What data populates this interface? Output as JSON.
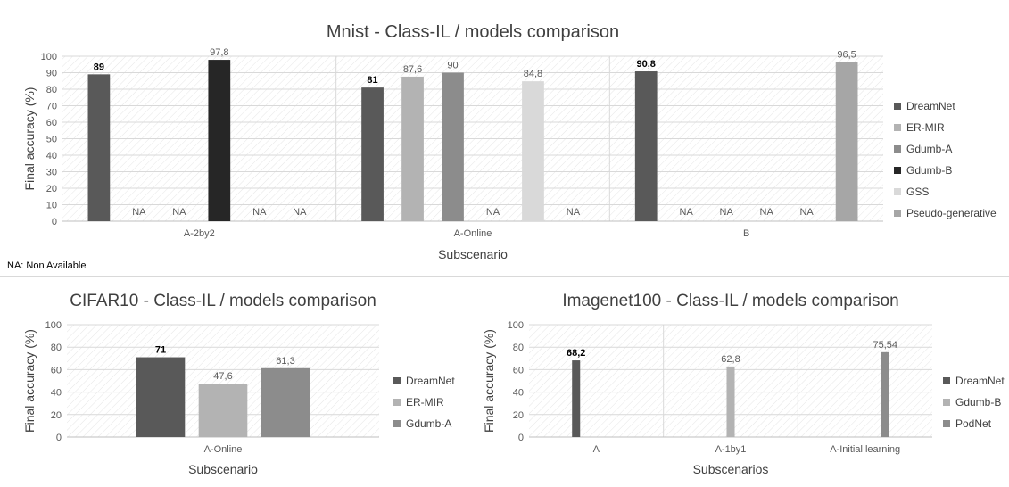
{
  "footnote": "NA: Non Available",
  "chart_data": [
    {
      "type": "bar",
      "title": "Mnist - Class-IL / models comparison",
      "xlabel": "Subscenario",
      "ylabel": "Final accuracy (%)",
      "ylim": [
        0,
        100
      ],
      "yticks": [
        0,
        10,
        20,
        30,
        40,
        50,
        60,
        70,
        80,
        90,
        100
      ],
      "grid": true,
      "legend_position": "right",
      "categories": [
        "A-2by2",
        "A-Online",
        "B"
      ],
      "series": [
        {
          "name": "DreamNet",
          "color": "#595959",
          "values": [
            89,
            81,
            90.8
          ],
          "labels": [
            "89",
            "81",
            "90,8"
          ],
          "bold": true
        },
        {
          "name": "ER-MIR",
          "color": "#b3b3b3",
          "values": [
            null,
            87.6,
            null
          ],
          "labels": [
            "NA",
            "87,6",
            "NA"
          ]
        },
        {
          "name": "Gdumb-A",
          "color": "#8c8c8c",
          "values": [
            null,
            90,
            null
          ],
          "labels": [
            "NA",
            "90",
            "NA"
          ]
        },
        {
          "name": "Gdumb-B",
          "color": "#262626",
          "values": [
            97.8,
            null,
            null
          ],
          "labels": [
            "97,8",
            "NA",
            "NA"
          ]
        },
        {
          "name": "GSS",
          "color": "#d9d9d9",
          "values": [
            null,
            84.8,
            null
          ],
          "labels": [
            "NA",
            "84,8",
            "NA"
          ]
        },
        {
          "name": "Pseudo-generative",
          "color": "#a6a6a6",
          "values": [
            null,
            null,
            96.5
          ],
          "labels": [
            "NA",
            "NA",
            "96,5"
          ]
        }
      ]
    },
    {
      "type": "bar",
      "title": "CIFAR10 - Class-IL / models comparison",
      "xlabel": "Subscenario",
      "ylabel": "Final accuracy (%)",
      "ylim": [
        0,
        100
      ],
      "yticks": [
        0,
        20,
        40,
        60,
        80,
        100
      ],
      "grid": true,
      "legend_position": "right",
      "categories": [
        "A-Online"
      ],
      "series": [
        {
          "name": "DreamNet",
          "color": "#595959",
          "values": [
            71
          ],
          "labels": [
            "71"
          ],
          "bold": true
        },
        {
          "name": "ER-MIR",
          "color": "#b3b3b3",
          "values": [
            47.6
          ],
          "labels": [
            "47,6"
          ]
        },
        {
          "name": "Gdumb-A",
          "color": "#8c8c8c",
          "values": [
            61.3
          ],
          "labels": [
            "61,3"
          ]
        }
      ]
    },
    {
      "type": "bar",
      "title": "Imagenet100 - Class-IL / models comparison",
      "xlabel": "Subscenarios",
      "ylabel": "Final accuracy (%)",
      "ylim": [
        0,
        100
      ],
      "yticks": [
        0,
        20,
        40,
        60,
        80,
        100
      ],
      "grid": true,
      "legend_position": "right",
      "categories": [
        "A",
        "A-1by1",
        "A-Initial learning"
      ],
      "series": [
        {
          "name": "DreamNet",
          "color": "#595959",
          "values": [
            68.2,
            null,
            null
          ],
          "labels": [
            "68,2",
            "",
            ""
          ],
          "bold": true
        },
        {
          "name": "Gdumb-B",
          "color": "#b3b3b3",
          "values": [
            null,
            62.8,
            null
          ],
          "labels": [
            "",
            "62,8",
            ""
          ]
        },
        {
          "name": "PodNet",
          "color": "#8c8c8c",
          "values": [
            null,
            null,
            75.54
          ],
          "labels": [
            "",
            "",
            "75,54"
          ]
        }
      ]
    }
  ]
}
